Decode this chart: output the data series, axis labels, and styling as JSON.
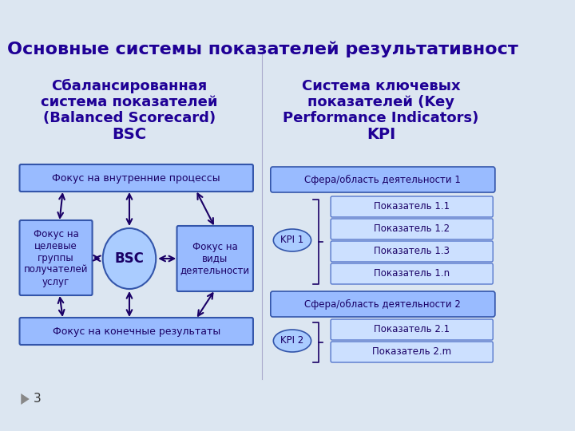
{
  "bg_color": "#dce6f1",
  "title": "Основные системы показателей результативност",
  "title_color": "#1f0096",
  "title_fontsize": 16,
  "left_header_line1": "Сбалансированная",
  "left_header_line2": "система показателей",
  "left_header_line3": "(Balanced Scorecard)",
  "left_header_line4": "BSC",
  "right_header_line1": "Система ключевых",
  "right_header_line2": "показателей (Key",
  "right_header_line3": "Performance Indicators)",
  "right_header_line4": "KPI",
  "header_color": "#1f0096",
  "box_fill": "#99bbff",
  "box_edge": "#3355aa",
  "box_text_color": "#1a0066",
  "circle_fill": "#aaccff",
  "circle_edge": "#3355aa",
  "top_box_text": "Фокус на внутренние процессы",
  "bottom_box_text": "Фокус на конечные результаты",
  "left_box_text": "Фокус на\nцелевые\nгруппы\nполучателей\nуслуг",
  "right_box_text": "Фокус на\nвиды\nдеятельности",
  "center_circle_text": "BSC",
  "kpi_area1": "Сфера/область деятельности 1",
  "kpi_area2": "Сфера/область деятельности 2",
  "kpi1_label": "KPI 1",
  "kpi2_label": "KPI 2",
  "kpi1_indicators": [
    "Показатель 1.1",
    "Показатель 1.2",
    "Показатель 1.3",
    "Показатель 1.n"
  ],
  "kpi2_indicators": [
    "Показатель 2.1",
    "Показатель 2.m"
  ],
  "slide_number": "3",
  "arrow_color": "#1a0066",
  "font_name": "DejaVu Sans",
  "indicator_box_fill": "#cce0ff",
  "indicator_box_edge": "#5577cc"
}
